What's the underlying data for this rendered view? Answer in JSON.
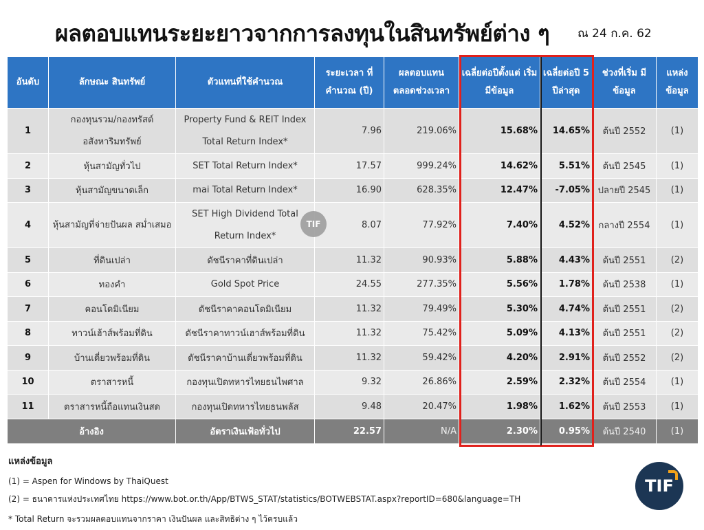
{
  "title": "ผลตอบแทนระยะยาวจากการลงทุนในสินทรัพย์ต่าง ๆ",
  "date": "ณ 24 ก.ค. 62",
  "headers": [
    "อันดับ",
    "ลักษณะ สินทรัพย์",
    "ตัวแทนที่ใช้คำนวณ",
    "ระยะเวลา ที่คำนวณ (ปี)",
    "ผลตอบแทน ตลอดช่วงเวลา",
    "เฉลี่ยต่อปีตั้งแต่ เริ่มมีข้อมูล",
    "เฉลี่ยต่อปี 5 ปีล่าสุด",
    "ช่วงที่เริ่ม มีข้อมูล",
    "แหล่ง ข้อมูล"
  ],
  "rows": [
    {
      "rank": "1",
      "asset": "กองทุนรวม/กองทรัสต์ อสังหาริมทรัพย์",
      "proxy": "Property Fund & REIT Index Total Return Index*",
      "years": "7.96",
      "total": "219.06%",
      "avg_since": "15.68%",
      "avg_5y": "14.65%",
      "start": "ต้นปี 2552",
      "source": "(1)"
    },
    {
      "rank": "2",
      "asset": "หุ้นสามัญทั่วไป",
      "proxy": "SET Total Return Index*",
      "years": "17.57",
      "total": "999.24%",
      "avg_since": "14.62%",
      "avg_5y": "5.51%",
      "start": "ต้นปี 2545",
      "source": "(1)"
    },
    {
      "rank": "3",
      "asset": "หุ้นสามัญขนาดเล็ก",
      "proxy": "mai Total Return Index*",
      "years": "16.90",
      "total": "628.35%",
      "avg_since": "12.47%",
      "avg_5y": "-7.05%",
      "start": "ปลายปี 2545",
      "source": "(1)"
    },
    {
      "rank": "4",
      "asset": "หุ้นสามัญที่จ่ายปันผล สม่ำเสมอ",
      "proxy": "SET High Dividend Total Return Index*",
      "years": "8.07",
      "total": "77.92%",
      "avg_since": "7.40%",
      "avg_5y": "4.52%",
      "start": "กลางปี 2554",
      "source": "(1)"
    },
    {
      "rank": "5",
      "asset": "ที่ดินเปล่า",
      "proxy": "ดัชนีราคาที่ดินเปล่า",
      "years": "11.32",
      "total": "90.93%",
      "avg_since": "5.88%",
      "avg_5y": "4.43%",
      "start": "ต้นปี 2551",
      "source": "(2)"
    },
    {
      "rank": "6",
      "asset": "ทองคำ",
      "proxy": "Gold Spot Price",
      "years": "24.55",
      "total": "277.35%",
      "avg_since": "5.56%",
      "avg_5y": "1.78%",
      "start": "ต้นปี 2538",
      "source": "(1)"
    },
    {
      "rank": "7",
      "asset": "คอนโดมิเนียม",
      "proxy": "ดัชนีราคาคอนโดมิเนียม",
      "years": "11.32",
      "total": "79.49%",
      "avg_since": "5.30%",
      "avg_5y": "4.74%",
      "start": "ต้นปี 2551",
      "source": "(2)"
    },
    {
      "rank": "8",
      "asset": "ทาวน์เฮ้าส์พร้อมที่ดิน",
      "proxy": "ดัชนีราคาทาวน์เฮาส์พร้อมที่ดิน",
      "years": "11.32",
      "total": "75.42%",
      "avg_since": "5.09%",
      "avg_5y": "4.13%",
      "start": "ต้นปี 2551",
      "source": "(2)"
    },
    {
      "rank": "9",
      "asset": "บ้านเดี่ยวพร้อมที่ดิน",
      "proxy": "ดัชนีราคาบ้านเดี่ยวพร้อมที่ดิน",
      "years": "11.32",
      "total": "59.42%",
      "avg_since": "4.20%",
      "avg_5y": "2.91%",
      "start": "ต้นปี 2552",
      "source": "(2)"
    },
    {
      "rank": "10",
      "asset": "ตราสารหนี้",
      "proxy": "กองทุนเปิดทหารไทยธนไพศาล",
      "years": "9.32",
      "total": "26.86%",
      "avg_since": "2.59%",
      "avg_5y": "2.32%",
      "start": "ต้นปี 2554",
      "source": "(1)"
    },
    {
      "rank": "11",
      "asset": "ตราสารหนี้ถือแทนเงินสด",
      "proxy": "กองทุนเปิดทหารไทยธนพลัส",
      "years": "9.48",
      "total": "20.47%",
      "avg_since": "1.98%",
      "avg_5y": "1.62%",
      "start": "ต้นปี 2553",
      "source": "(1)"
    }
  ],
  "reference": {
    "label": "อ้างอิง",
    "proxy": "อัตราเงินเฟ้อทั่วไป",
    "years": "22.57",
    "total": "N/A",
    "avg_since": "2.30%",
    "avg_5y": "0.95%",
    "start": "ต้นปี 2540",
    "source": "(1)"
  },
  "watermark": "TIF",
  "notes": {
    "title": "แหล่งข้อมูล",
    "line1": "(1) = Aspen for Windows by ThaiQuest",
    "line2": "(2) = ธนาคารแห่งประเทศไทย https://www.bot.or.th/App/BTWS_STAT/statistics/BOTWEBSTAT.aspx?reportID=680&language=TH",
    "footnote": "* Total Return จะรวมผลตอบแทนจากราคา เงินปันผล และสิทธิต่าง ๆ ไว้ครบแล้ว"
  },
  "logo": "TIF",
  "colors": {
    "header_bg": "#2e75c4",
    "highlight_border": "#e0201b",
    "reference_bg": "#7f7f7f",
    "logo_bg": "#1c3654",
    "logo_accent": "#f2a21a"
  }
}
